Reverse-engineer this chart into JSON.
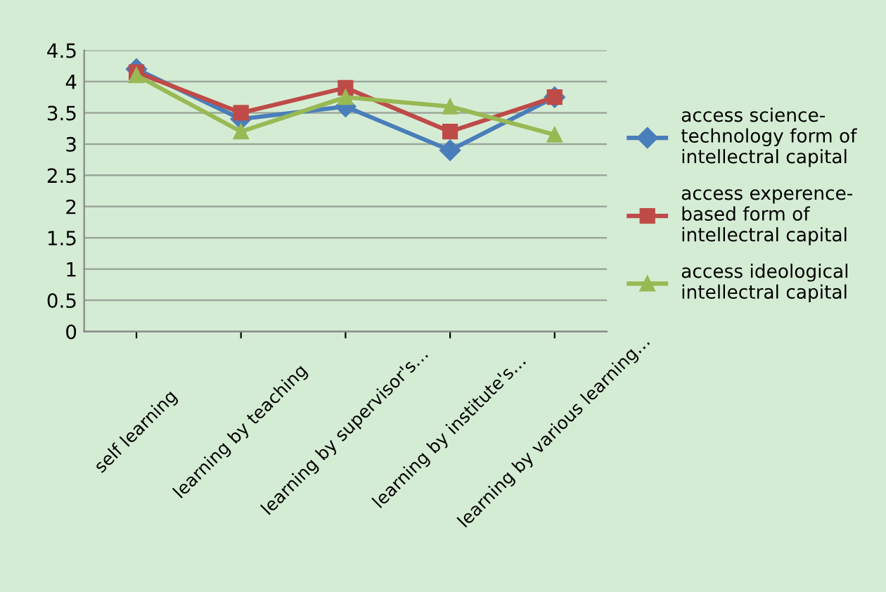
{
  "chart_data": {
    "type": "line",
    "categories": [
      "self learning",
      "learning by teaching",
      "learning by supervisor's…",
      "learning by institute's…",
      "learning by various learning…"
    ],
    "series": [
      {
        "name": "access science-\ntechnology form of\nintellectral capital",
        "color": "#4a7ebb",
        "marker": "diamond",
        "values": [
          4.2,
          3.4,
          3.6,
          2.9,
          3.75
        ]
      },
      {
        "name": "access experence-\nbased form of\nintellectral capital",
        "color": "#be4b48",
        "marker": "square",
        "values": [
          4.15,
          3.5,
          3.9,
          3.2,
          3.75
        ]
      },
      {
        "name": "access ideological\nintellectral capital",
        "color": "#98b954",
        "marker": "triangle",
        "values": [
          4.1,
          3.2,
          3.75,
          3.6,
          3.15
        ]
      }
    ],
    "ylim": [
      0,
      4.5
    ],
    "yticks": [
      0,
      0.5,
      1,
      1.5,
      2,
      2.5,
      3,
      3.5,
      4,
      4.5
    ],
    "grid": "y",
    "legend": "right"
  }
}
